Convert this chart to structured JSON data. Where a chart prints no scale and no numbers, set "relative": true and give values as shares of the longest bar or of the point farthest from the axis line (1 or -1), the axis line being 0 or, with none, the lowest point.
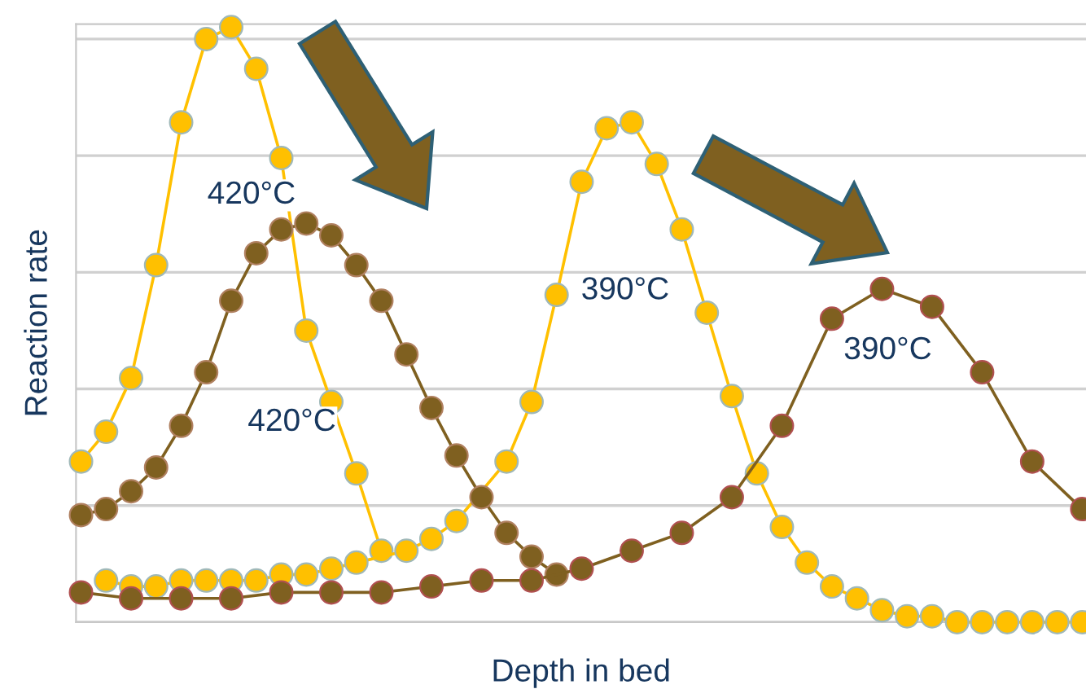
{
  "chart_data": {
    "type": "line",
    "relative": true,
    "xlabel": "Depth in bed",
    "ylabel": "Reaction rate",
    "categories": [
      null,
      null,
      null,
      null,
      null,
      null,
      null,
      null,
      null,
      null,
      null,
      null,
      null,
      null,
      null,
      null,
      null,
      null,
      null,
      null,
      null,
      null,
      null,
      null,
      null,
      null,
      null,
      null,
      null,
      null,
      null,
      null,
      null,
      null,
      null,
      null,
      null,
      null,
      null,
      null,
      null
    ],
    "series": [
      {
        "color": "#ffc000",
        "values": [
          0.27,
          0.32,
          0.41,
          0.6,
          0.84,
          0.98,
          1.0,
          0.93,
          0.78,
          0.49,
          0.37,
          0.25,
          0.12,
          null,
          null,
          null,
          null,
          null,
          null,
          null,
          null,
          null,
          null,
          null,
          null,
          null,
          null,
          null,
          null,
          null,
          null,
          null,
          null,
          null,
          null,
          null,
          null,
          null,
          null,
          null,
          null
        ]
      },
      {
        "color": "#ffc000",
        "values": [
          null,
          0.07,
          0.06,
          0.06,
          0.07,
          0.07,
          0.07,
          0.07,
          0.08,
          0.08,
          0.09,
          0.1,
          null,
          0.12,
          0.14,
          0.17,
          null,
          0.27,
          0.37,
          0.55,
          0.74,
          0.83,
          0.84,
          0.77,
          0.66,
          0.52,
          0.38,
          0.25,
          0.16,
          0.1,
          0.06,
          0.04,
          0.02,
          0.01,
          0.01,
          0,
          0,
          0,
          0,
          0,
          0
        ]
      },
      {
        "color": "#7f6020",
        "values": [
          0.18,
          0.19,
          0.22,
          0.26,
          0.33,
          0.42,
          0.54,
          0.62,
          0.66,
          0.67,
          0.65,
          0.6,
          0.54,
          0.45,
          0.36,
          0.28,
          0.21,
          0.15,
          0.11,
          0.08,
          null,
          null,
          null,
          null,
          null,
          null,
          null,
          null,
          null,
          null,
          null,
          null,
          null,
          null,
          null,
          null,
          null,
          null,
          null,
          null,
          null
        ]
      },
      {
        "color": "#7f6020",
        "values": [
          0.05,
          null,
          0.04,
          null,
          0.04,
          null,
          0.04,
          null,
          0.05,
          null,
          0.05,
          null,
          0.05,
          null,
          0.06,
          null,
          0.07,
          null,
          0.07,
          null,
          0.09,
          null,
          0.12,
          null,
          0.15,
          null,
          0.21,
          null,
          0.33,
          null,
          0.51,
          null,
          0.56,
          null,
          0.53,
          null,
          0.42,
          null,
          0.27,
          null,
          0.19
        ]
      }
    ],
    "annotations": [
      "420°C",
      "420°C",
      "390°C",
      "390°C"
    ],
    "marker": "circle",
    "grid": "y",
    "legend": false
  }
}
